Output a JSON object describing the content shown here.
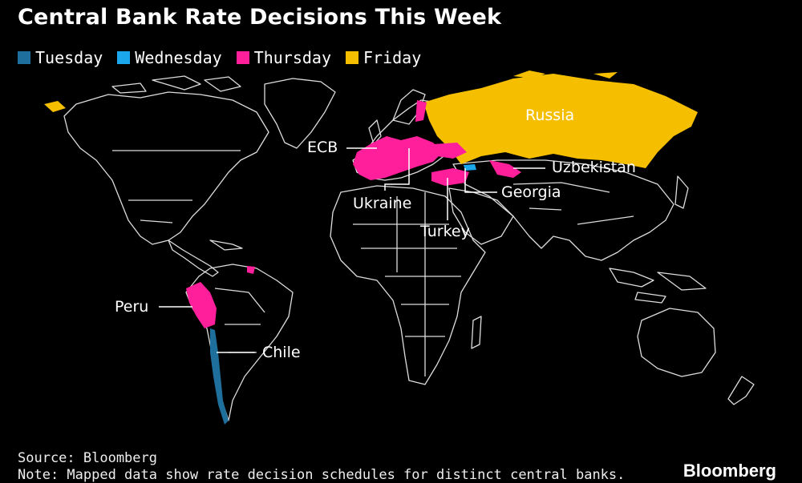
{
  "title": "Central Bank Rate Decisions This Week",
  "legend": [
    {
      "label": "Tuesday",
      "color": "#1f6f9c"
    },
    {
      "label": "Wednesday",
      "color": "#1aa7ec"
    },
    {
      "label": "Thursday",
      "color": "#ff1f9a"
    },
    {
      "label": "Friday",
      "color": "#f5bf00"
    }
  ],
  "labels": {
    "russia": "Russia",
    "ecb": "ECB",
    "uzbekistan": "Uzbekistan",
    "georgia": "Georgia",
    "ukraine": "Ukraine",
    "turkey": "Turkey",
    "peru": "Peru",
    "chile": "Chile"
  },
  "footer": {
    "source": "Source: Bloomberg",
    "note": "Note: Mapped data show rate decision schedules for distinct central banks."
  },
  "brand": "Bloomberg"
}
